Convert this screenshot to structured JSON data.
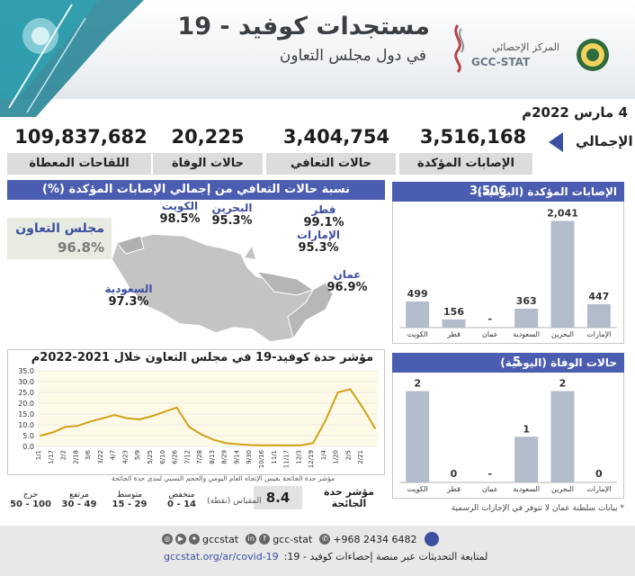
{
  "header": {
    "title": "مستجدات كوفيد - 19",
    "subtitle": "في دول مجلس التعاون",
    "org_name_ar": "المركز الإحصائي",
    "org_name_en": "GCC-STAT"
  },
  "report_date": "4 مارس 2022م",
  "totals": {
    "label": "الإجمالي",
    "items": [
      {
        "label": "الإصابات المؤكدة",
        "value": "3,516,168"
      },
      {
        "label": "حالات التعافي",
        "value": "3,404,754"
      },
      {
        "label": "حالات الوفاة",
        "value": "20,225"
      },
      {
        "label": "اللقاحات المعطاة",
        "value": "109,837,682"
      }
    ]
  },
  "recovery_map": {
    "title": "نسبة حالات التعافي من إجمالي الإصابات المؤكدة (%)",
    "countries": [
      {
        "name": "الكويت",
        "value": "98.5%"
      },
      {
        "name": "البحرين",
        "value": "95.3%"
      },
      {
        "name": "قطر",
        "value": "99.1%"
      },
      {
        "name": "الإمارات",
        "value": "95.3%"
      },
      {
        "name": "عمان",
        "value": "96.9%"
      },
      {
        "name": "السعودية",
        "value": "97.3%"
      }
    ],
    "gcc_label": "مجلس التعاون",
    "gcc_value": "96.8%"
  },
  "severity_index": {
    "label": "مؤشر حدة الجائحة",
    "value": "8.4",
    "scale_label": "المقياس (نقطة)",
    "levels": [
      {
        "name": "منخفض",
        "range": "0 - 14",
        "color": "#e6e9c4"
      },
      {
        "name": "متوسط",
        "range": "15 - 29",
        "color": "#9bb37c"
      },
      {
        "name": "مرتفع",
        "range": "30 - 49",
        "color": "#e7a3a3"
      },
      {
        "name": "حرج",
        "range": "50 - 100",
        "color": "#d9a4a4"
      }
    ]
  },
  "daily_panel": {
    "label": "الإصابات المؤكدة (اليومية)",
    "total": "3,506"
  },
  "deaths_panel": {
    "label": "حالات الوفاة (اليومية)",
    "total": "5"
  },
  "footnote": "* بيانات سلطنة عمان لا تتوفر في الإجازات الرسمية",
  "footer": {
    "phone": "+968 2434 6482",
    "social_1": "gcc-stat",
    "social_2": "gccstat",
    "follow_text": "لمتابعة التحديثات عبر منصة إحصاءات كوفيد - 19:",
    "url": "gccstat.org/ar/covid-19"
  },
  "colors": {
    "accent": "#4b5db0",
    "bar": "#b3bccb",
    "line": "#d4a017",
    "chart_bg": "#fdfbe8"
  },
  "chart_data": [
    {
      "type": "line",
      "title": "مؤشر حدة كوفيد-19 في مجلس التعاون خلال 2021-2022م",
      "caption": "مؤشر حدة الجائحة يقيس الإتجاه العام اليومي والحجم النسبي لمدى حدة الجائحة",
      "x_tick_labels": [
        "1/1",
        "1/17",
        "2/2",
        "2/18",
        "3/6",
        "3/22",
        "4/7",
        "4/23",
        "5/9",
        "5/25",
        "6/10",
        "6/26",
        "7/12",
        "7/28",
        "8/13",
        "8/29",
        "9/14",
        "9/30",
        "10/16",
        "11/1",
        "11/17",
        "12/3",
        "12/19",
        "1/4",
        "1/20",
        "2/5",
        "2/21"
      ],
      "xlabel": "",
      "ylabel": "",
      "ylim": [
        0,
        35
      ],
      "y_ticks": [
        "0.0",
        "5.0",
        "10.0",
        "15.0",
        "20.0",
        "25.0",
        "30.0",
        "35.0"
      ],
      "grid": true,
      "series": [
        {
          "x": [
            "1/1",
            "1/17",
            "2/2",
            "2/18",
            "3/6",
            "3/22",
            "4/7",
            "4/23",
            "5/9",
            "5/25",
            "6/10",
            "6/26",
            "7/12",
            "7/28",
            "8/13",
            "8/29",
            "9/14",
            "9/30",
            "10/16",
            "11/1",
            "11/17",
            "12/3",
            "12/19",
            "1/4",
            "1/20",
            "2/5",
            "2/21",
            "3/4"
          ],
          "values": [
            5.0,
            6.5,
            9.0,
            9.5,
            11.5,
            13.0,
            14.5,
            13.0,
            12.5,
            14.0,
            16.0,
            18.0,
            9.0,
            5.5,
            3.0,
            1.5,
            1.0,
            0.6,
            0.5,
            0.5,
            0.4,
            0.5,
            1.5,
            12.0,
            25.0,
            26.5,
            18.0,
            8.4
          ]
        }
      ]
    },
    {
      "type": "bar",
      "title": "الإصابات المؤكدة (اليومية)",
      "categories": [
        "الكويت",
        "قطر",
        "عمان",
        "السعودية",
        "البحرين",
        "الإمارات"
      ],
      "values": [
        499,
        156,
        null,
        363,
        2041,
        447
      ],
      "value_labels": [
        "499",
        "156",
        "-",
        "363",
        "2,041",
        "447"
      ]
    },
    {
      "type": "bar",
      "title": "حالات الوفاة (اليومية)",
      "categories": [
        "الكويت",
        "قطر",
        "عمان",
        "السعودية",
        "البحرين",
        "الإمارات"
      ],
      "values": [
        2,
        0,
        null,
        1,
        2,
        0
      ],
      "value_labels": [
        "2",
        "0",
        "-",
        "1",
        "2",
        "0"
      ]
    }
  ]
}
